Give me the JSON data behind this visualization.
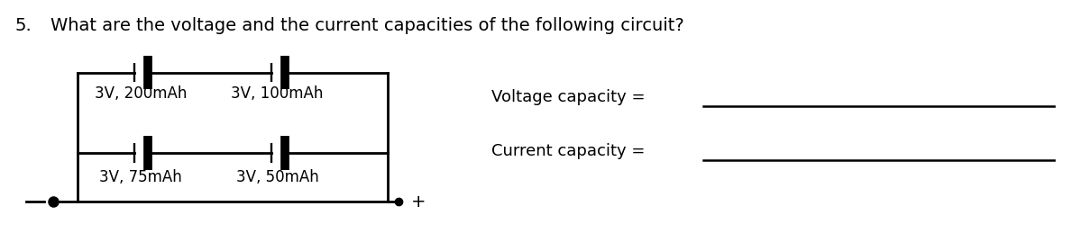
{
  "title_number": "5.",
  "title_text": "  What are the voltage and the current capacities of the following circuit?",
  "title_fontsize": 14,
  "background_color": "#ffffff",
  "text_color": "#000000",
  "line_color": "#000000",
  "label_fontsize": 12,
  "voltage_label": "Voltage capacity =",
  "current_label": "Current capacity =",
  "label_top_left": "3V, 200mAh",
  "label_top_right": "3V, 100mAh",
  "label_bot_left": "3V, 75mAh",
  "label_bot_right": "3V, 50mAh"
}
